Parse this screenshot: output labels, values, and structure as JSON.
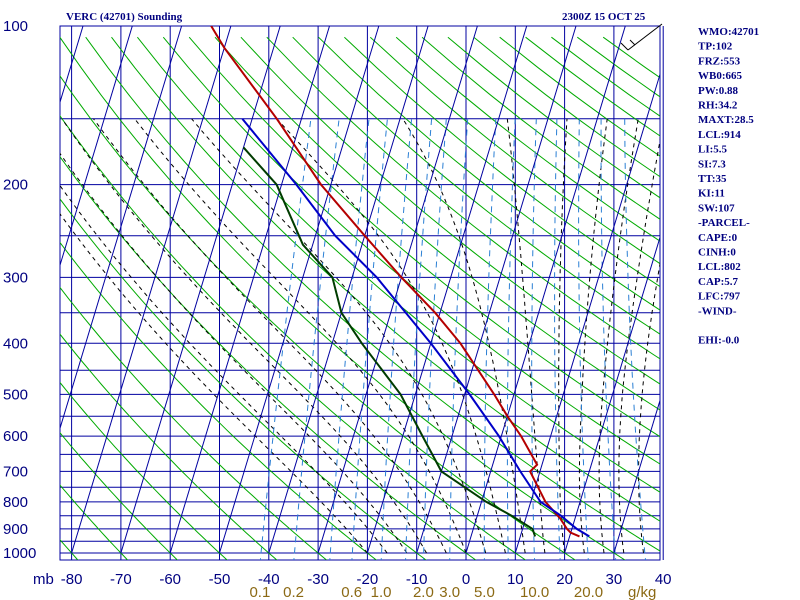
{
  "chart_data": {
    "type": "line",
    "subtype": "skew-T log-P sounding",
    "title": "VERC (42701) Sounding",
    "valid_time": "2300Z 15 OCT 25",
    "pressure_unit_label": "mb",
    "pressure_levels": [
      100,
      200,
      300,
      400,
      500,
      600,
      700,
      800,
      900,
      1000
    ],
    "pressure_labels": [
      "100",
      "200",
      "300",
      "400",
      "500",
      "600",
      "700",
      "800",
      "900",
      "1000"
    ],
    "temperature_ticks": [
      -80,
      -70,
      -60,
      -50,
      -40,
      -30,
      -20,
      -10,
      0,
      10,
      20,
      30,
      40
    ],
    "temperature_labels": [
      "-80",
      "-70",
      "-60",
      "-50",
      "-40",
      "-30",
      "-20",
      "-10",
      "0",
      "10",
      "20",
      "30",
      "40"
    ],
    "mixing_ratio_label_values": [
      0.1,
      0.2,
      0.6,
      1.0,
      2.0,
      3.0,
      5.0,
      10.0,
      20.0
    ],
    "mixing_ratio_labels": [
      "0.1",
      "0.2",
      "0.6",
      "1.0",
      "2.0",
      "3.0",
      "5.0",
      "10.0",
      "20.0"
    ],
    "mixing_ratio_unit": "g/kg",
    "xlim_temperature_at_1000mb": [
      -80,
      40
    ],
    "ylim_pressure": [
      1000,
      100
    ],
    "series": [
      {
        "name": "Temperature",
        "color": "#b40000",
        "points": [
          {
            "p": 930,
            "t": 22
          },
          {
            "p": 915,
            "t": 20
          },
          {
            "p": 900,
            "t": 19
          },
          {
            "p": 860,
            "t": 17
          },
          {
            "p": 800,
            "t": 13
          },
          {
            "p": 700,
            "t": 8
          },
          {
            "p": 680,
            "t": 9
          },
          {
            "p": 600,
            "t": 4
          },
          {
            "p": 550,
            "t": 0
          },
          {
            "p": 500,
            "t": -4
          },
          {
            "p": 400,
            "t": -14
          },
          {
            "p": 350,
            "t": -21
          },
          {
            "p": 300,
            "t": -30
          },
          {
            "p": 250,
            "t": -40
          },
          {
            "p": 200,
            "t": -52
          },
          {
            "p": 150,
            "t": -65
          },
          {
            "p": 110,
            "t": -80
          },
          {
            "p": 100,
            "t": -84
          }
        ]
      },
      {
        "name": "Parcel",
        "color": "#0000c8",
        "points": [
          {
            "p": 930,
            "t": 24
          },
          {
            "p": 900,
            "t": 21
          },
          {
            "p": 850,
            "t": 17
          },
          {
            "p": 800,
            "t": 12
          },
          {
            "p": 700,
            "t": 6
          },
          {
            "p": 600,
            "t": -0.5
          },
          {
            "p": 500,
            "t": -9
          },
          {
            "p": 400,
            "t": -20
          },
          {
            "p": 300,
            "t": -35
          },
          {
            "p": 250,
            "t": -46
          },
          {
            "p": 200,
            "t": -57
          },
          {
            "p": 150,
            "t": -72
          }
        ]
      },
      {
        "name": "Dewpoint",
        "color": "#003c00",
        "points": [
          {
            "p": 930,
            "t": 13
          },
          {
            "p": 900,
            "t": 12
          },
          {
            "p": 850,
            "t": 7
          },
          {
            "p": 800,
            "t": 1
          },
          {
            "p": 700,
            "t": -10
          },
          {
            "p": 600,
            "t": -16
          },
          {
            "p": 500,
            "t": -23
          },
          {
            "p": 400,
            "t": -34
          },
          {
            "p": 350,
            "t": -40
          },
          {
            "p": 300,
            "t": -44
          },
          {
            "p": 260,
            "t": -52
          },
          {
            "p": 200,
            "t": -61
          },
          {
            "p": 170,
            "t": -70
          }
        ]
      }
    ]
  },
  "indices": [
    {
      "label": "WMO",
      "value": "42701"
    },
    {
      "label": "TP",
      "value": "102"
    },
    {
      "label": "FRZ",
      "value": "553"
    },
    {
      "label": "WB0",
      "value": "665"
    },
    {
      "label": "PW",
      "value": "0.88"
    },
    {
      "label": "RH",
      "value": "34.2"
    },
    {
      "label": "MAXT",
      "value": "28.5"
    },
    {
      "label": "LCL",
      "value": "914"
    },
    {
      "label": "LI",
      "value": "5.5"
    },
    {
      "label": "SI",
      "value": "7.3"
    },
    {
      "label": "TT",
      "value": "35"
    },
    {
      "label": "KI",
      "value": "11"
    },
    {
      "label": "SW",
      "value": "107"
    },
    {
      "label": "",
      "value": "-PARCEL-"
    },
    {
      "label": "CAPE",
      "value": "0"
    },
    {
      "label": "CINH",
      "value": "0"
    },
    {
      "label": "LCL",
      "value": "802"
    },
    {
      "label": "CAP",
      "value": "5.7"
    },
    {
      "label": "LFC",
      "value": "797"
    },
    {
      "label": "",
      "value": "-WIND-"
    },
    {
      "label": "",
      "value": ""
    },
    {
      "label": "EHI",
      "value": "-0.0"
    }
  ],
  "colors": {
    "grid": "#0000a0",
    "dry_adiabat": "#00aa00",
    "moist_adiabat": "#000000",
    "mixing_ratio": "#2a7fd4",
    "mixing_label": "#8b6914",
    "wind": "#000000"
  }
}
